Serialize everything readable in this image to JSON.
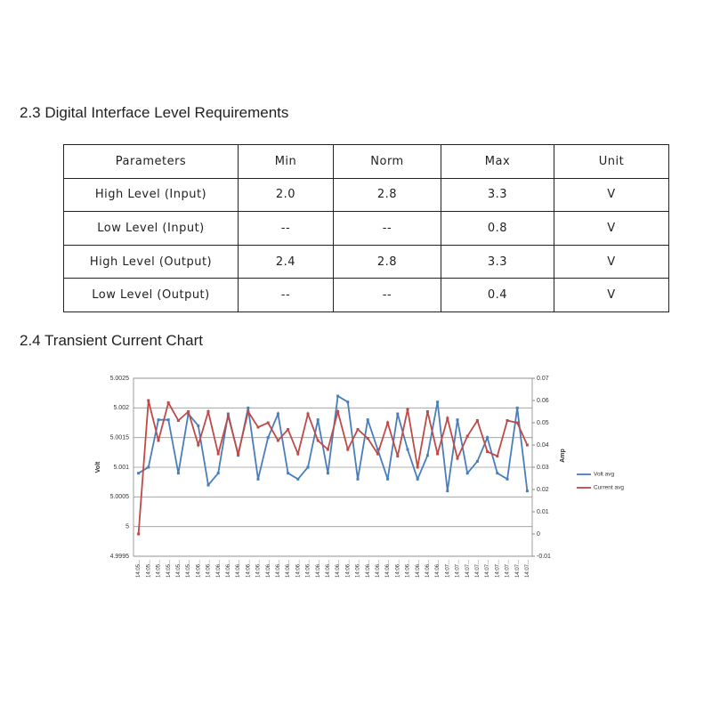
{
  "section_1": {
    "title": "2.3 Digital Interface Level Requirements",
    "table": {
      "header": [
        "Parameters",
        "Min",
        "Norm",
        "Max",
        "Unit"
      ],
      "rows": [
        [
          "High Level (Input)",
          "2.0",
          "2.8",
          "3.3",
          "V"
        ],
        [
          "Low Level (Input)",
          "--",
          "--",
          "0.8",
          "V"
        ],
        [
          "High Level (Output)",
          "2.4",
          "2.8",
          "3.3",
          "V"
        ],
        [
          "Low Level (Output)",
          "--",
          "--",
          "0.4",
          "V"
        ]
      ]
    }
  },
  "section_2": {
    "title": "2.4 Transient Current Chart"
  },
  "chart_data": {
    "type": "line",
    "y_label": "Volt",
    "y2_label": "Amp",
    "categories": [
      "14:05...",
      "14:05...",
      "14:05...",
      "14:05...",
      "14:05...",
      "14:05...",
      "14:06...",
      "14:06...",
      "14:06...",
      "14:06...",
      "14:06...",
      "14:06...",
      "14:06...",
      "14:06...",
      "14:06...",
      "14:06...",
      "14:06...",
      "14:06...",
      "14:06...",
      "14:06...",
      "14:06...",
      "14:06...",
      "14:06...",
      "14:06...",
      "14:06...",
      "14:06...",
      "14:06...",
      "14:06...",
      "14:06...",
      "14:06...",
      "14:06...",
      "14:07...",
      "14:07...",
      "14:07...",
      "14:07...",
      "14:07...",
      "14:07...",
      "14:07...",
      "14:07...",
      "14:07..."
    ],
    "series": [
      {
        "name": "Volt avg",
        "color": "#4a7ebb",
        "values": [
          5.0009,
          5.001,
          5.0018,
          5.0018,
          5.0009,
          5.0019,
          5.0017,
          5.0007,
          5.0009,
          5.0019,
          5.0012,
          5.002,
          5.0008,
          5.0015,
          5.0019,
          5.0009,
          5.0008,
          5.001,
          5.0018,
          5.0009,
          5.0022,
          5.0021,
          5.0008,
          5.0018,
          5.0013,
          5.0008,
          5.0019,
          5.0013,
          5.0008,
          5.0012,
          5.0021,
          5.0006,
          5.0018,
          5.0009,
          5.0011,
          5.0015,
          5.0009,
          5.0008,
          5.002,
          5.0006
        ]
      },
      {
        "name": "Current avg",
        "color": "#be4b48",
        "axis": "y2",
        "values": [
          0,
          0.06,
          0.042,
          0.059,
          0.051,
          0.055,
          0.04,
          0.055,
          0.036,
          0.053,
          0.036,
          0.055,
          0.048,
          0.05,
          0.042,
          0.047,
          0.036,
          0.054,
          0.042,
          0.038,
          0.055,
          0.038,
          0.047,
          0.043,
          0.036,
          0.05,
          0.035,
          0.056,
          0.03,
          0.055,
          0.036,
          0.052,
          0.034,
          0.044,
          0.051,
          0.037,
          0.035,
          0.051,
          0.05,
          0.04
        ]
      }
    ],
    "ylim": [
      4.9995,
      5.0025
    ],
    "yticks": [
      4.9995,
      5,
      5.0005,
      5.001,
      5.0015,
      5.002,
      5.0025
    ],
    "y2lim": [
      -0.01,
      0.07
    ],
    "y2ticks": [
      -0.01,
      0,
      0.01,
      0.02,
      0.03,
      0.04,
      0.05,
      0.06,
      0.07
    ],
    "grid": true,
    "legend": "right"
  }
}
